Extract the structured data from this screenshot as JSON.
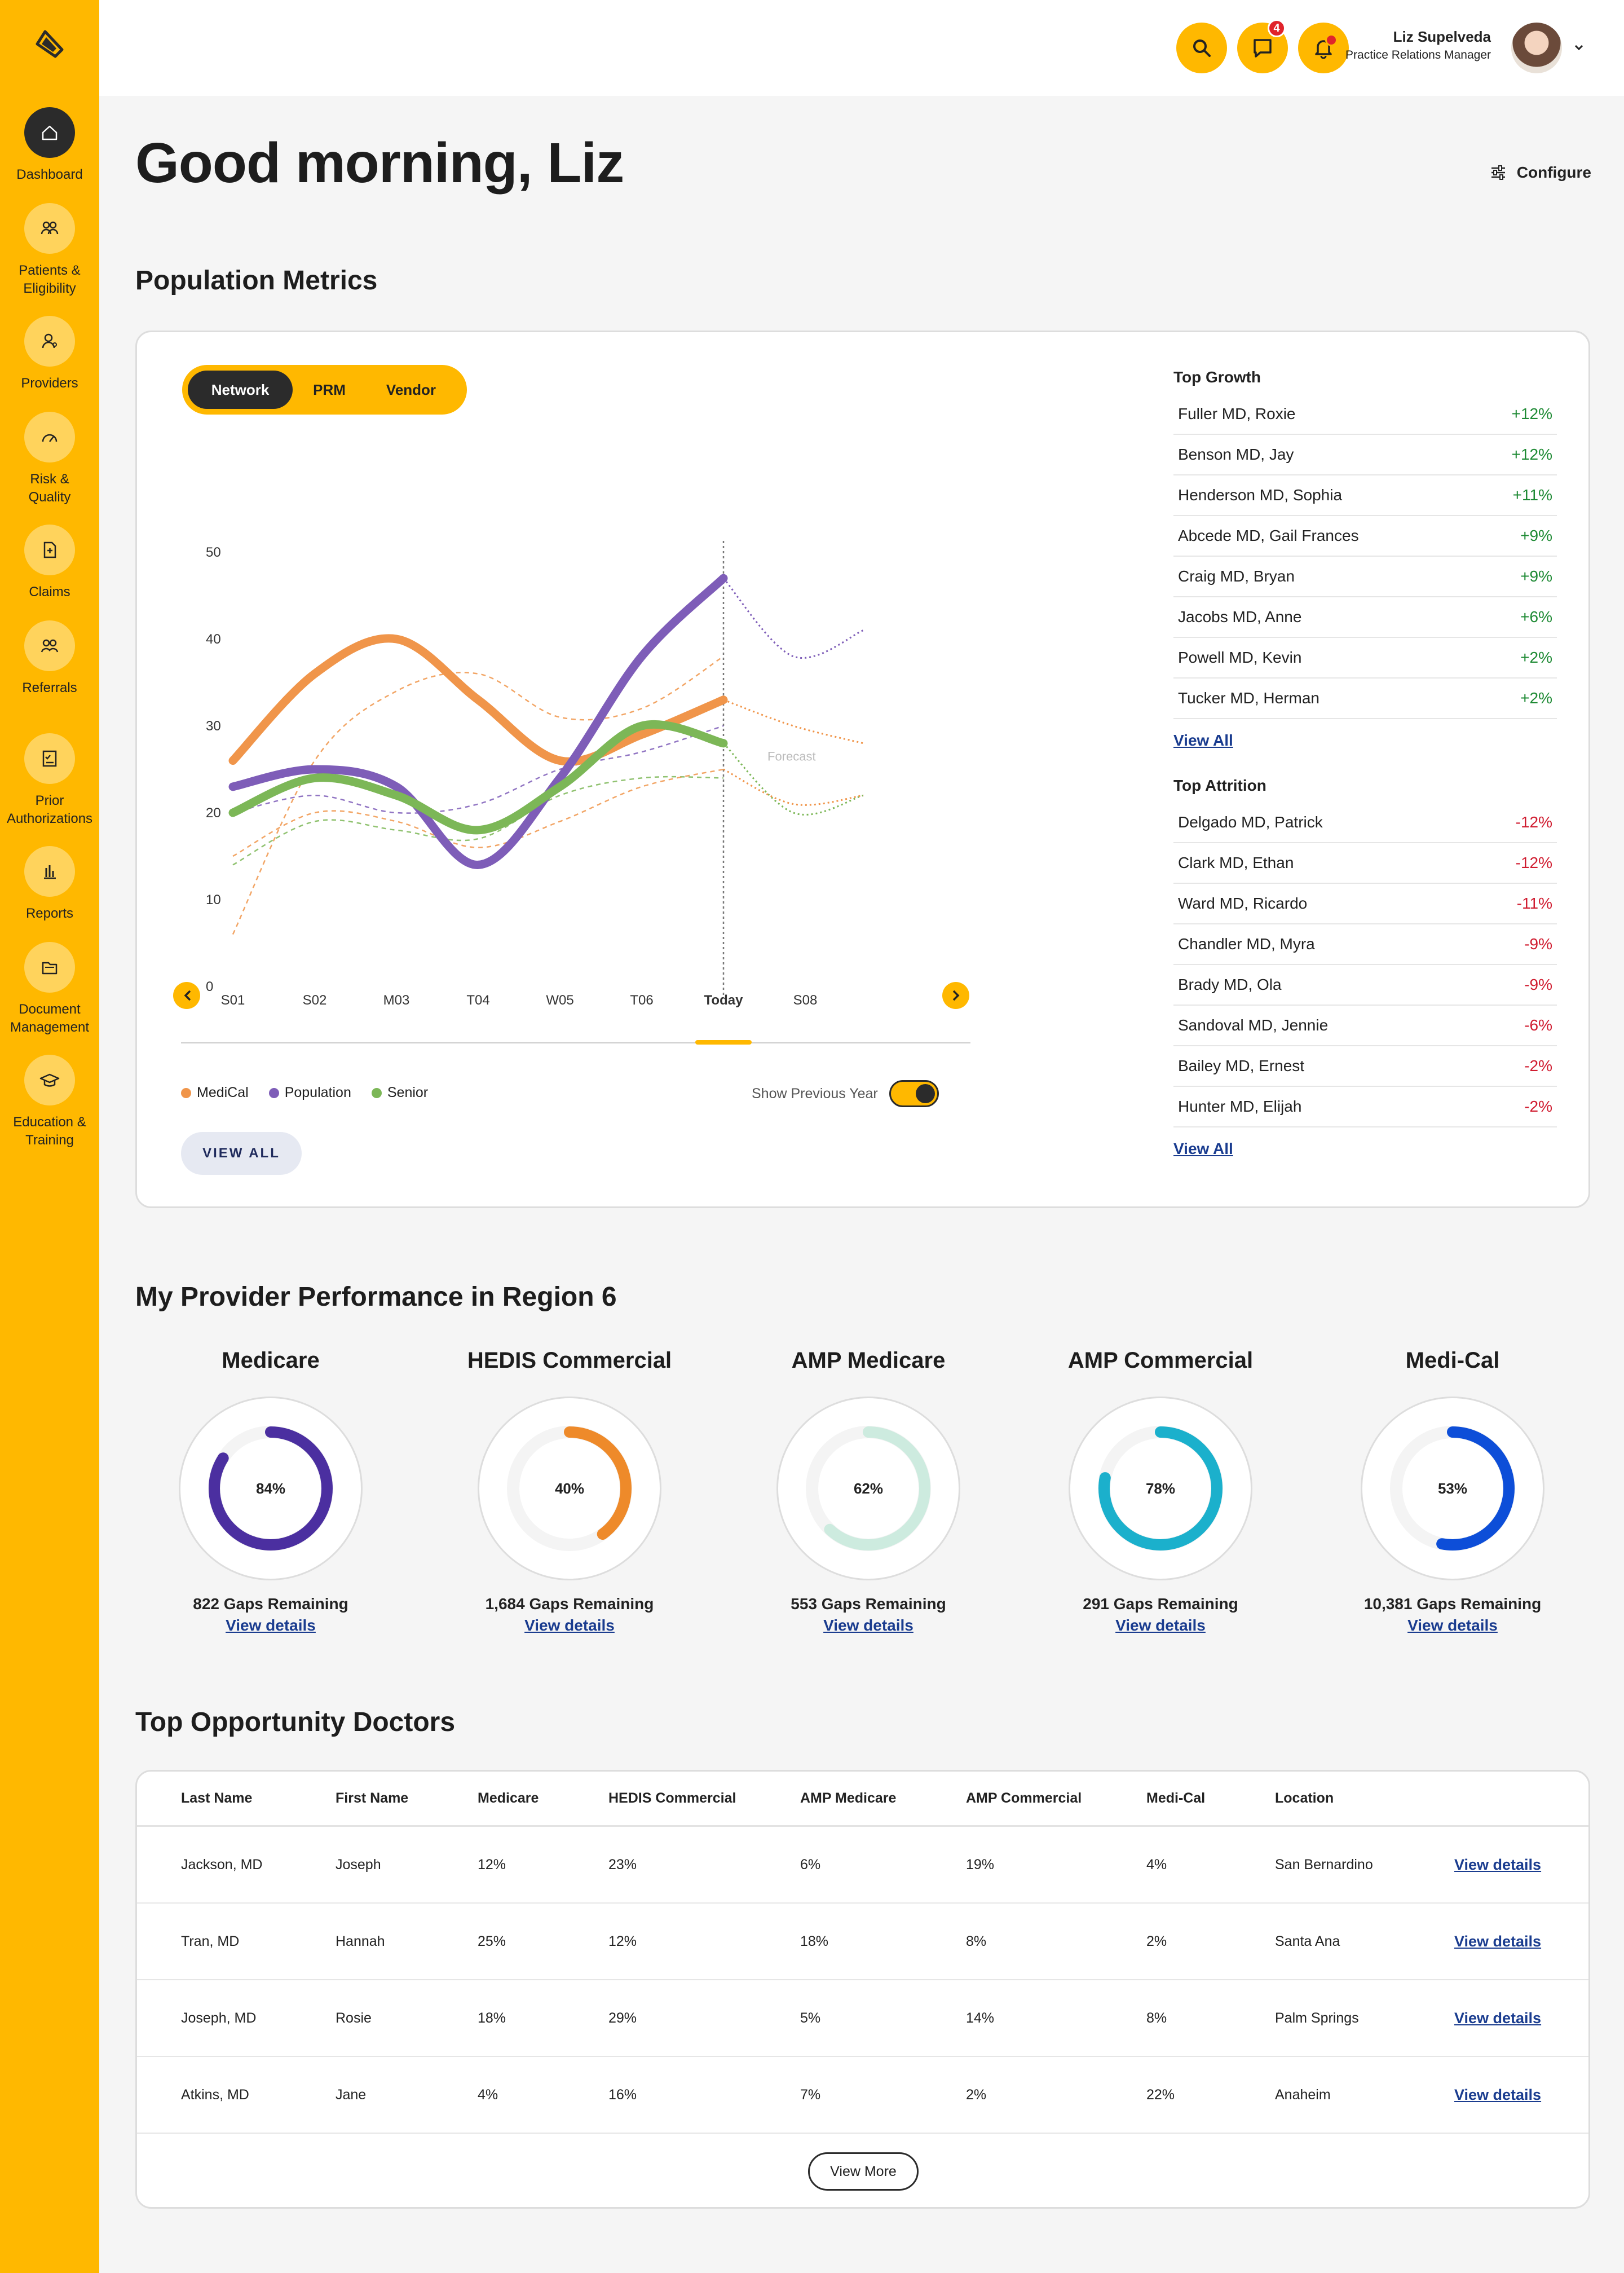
{
  "nav": [
    {
      "label": "Dashboard",
      "icon": "home-icon",
      "active": true
    },
    {
      "label": "Patients &\nEligibility",
      "icon": "people-icon"
    },
    {
      "label": "Providers",
      "icon": "provider-icon"
    },
    {
      "label": "Risk &\nQuality",
      "icon": "gauge-icon"
    },
    {
      "label": "Claims",
      "icon": "claims-doc-icon"
    },
    {
      "label": "Referrals",
      "icon": "referrals-icon"
    },
    {
      "label": "Prior\nAuthorizations",
      "icon": "checklist-icon"
    },
    {
      "label": "Reports",
      "icon": "bar-chart-icon"
    },
    {
      "label": "Document\nManagement",
      "icon": "folder-icon"
    },
    {
      "label": "Education &\nTraining",
      "icon": "graduation-cap-icon"
    }
  ],
  "topbar": {
    "message_badge": "4",
    "user_name": "Liz Supelveda",
    "user_role": "Practice Relations Manager"
  },
  "greeting": "Good morning, Liz",
  "configure_label": "Configure",
  "population": {
    "title": "Population Metrics",
    "segments": [
      "Network",
      "PRM",
      "Vendor"
    ],
    "active_segment": "Network",
    "legend": [
      "MediCal",
      "Population",
      "Senior"
    ],
    "show_previous_year": "Show Previous Year",
    "view_all_button": "VIEW ALL",
    "top_growth_title": "Top Growth",
    "top_growth": [
      {
        "name": "Fuller MD, Roxie",
        "value": "+12%"
      },
      {
        "name": "Benson MD, Jay",
        "value": "+12%"
      },
      {
        "name": "Henderson MD, Sophia",
        "value": "+11%"
      },
      {
        "name": "Abcede MD, Gail Frances",
        "value": "+9%"
      },
      {
        "name": "Craig MD, Bryan",
        "value": "+9%"
      },
      {
        "name": "Jacobs MD, Anne",
        "value": "+6%"
      },
      {
        "name": "Powell MD, Kevin",
        "value": "+2%"
      },
      {
        "name": "Tucker MD, Herman",
        "value": "+2%"
      }
    ],
    "top_attrition_title": "Top Attrition",
    "top_attrition": [
      {
        "name": "Delgado MD, Patrick",
        "value": "-12%"
      },
      {
        "name": "Clark MD, Ethan",
        "value": "-12%"
      },
      {
        "name": "Ward MD, Ricardo",
        "value": "-11%"
      },
      {
        "name": "Chandler MD, Myra",
        "value": "-9%"
      },
      {
        "name": "Brady MD, Ola",
        "value": "-9%"
      },
      {
        "name": "Sandoval MD, Jennie",
        "value": "-6%"
      },
      {
        "name": "Bailey MD, Ernest",
        "value": "-2%"
      },
      {
        "name": "Hunter MD, Elijah",
        "value": "-2%"
      }
    ],
    "view_all_link": "View All"
  },
  "chart_data": {
    "type": "line",
    "x": [
      "S01",
      "S02",
      "M03",
      "T04",
      "W05",
      "T06",
      "Today",
      "S08"
    ],
    "active_x": "Today",
    "ylim": [
      0,
      50
    ],
    "yticks": [
      0,
      10,
      20,
      30,
      40,
      50
    ],
    "forecast_label": "Forecast",
    "series": [
      {
        "name": "MediCal",
        "color": "#F0954A",
        "values": [
          26,
          36,
          40,
          33,
          26,
          29,
          33,
          33
        ]
      },
      {
        "name": "Population",
        "color": "#7E5DB8",
        "values": [
          23,
          25,
          23,
          14,
          24,
          38,
          47,
          47
        ]
      },
      {
        "name": "Senior",
        "color": "#7CB757",
        "values": [
          20,
          24,
          22,
          18,
          23,
          30,
          28,
          25
        ]
      }
    ]
  },
  "performance": {
    "title": "My Provider Performance in Region 6",
    "items": [
      {
        "title": "Medicare",
        "value": "84%",
        "pct": 84,
        "color": "#4B2FA0",
        "gaps": "822 Gaps Remaining"
      },
      {
        "title": "HEDIS Commercial",
        "value": "40%",
        "pct": 40,
        "color": "#EE8A2A",
        "gaps": "1,684 Gaps Remaining"
      },
      {
        "title": "AMP Medicare",
        "value": "62%",
        "pct": 62,
        "color": "#CDEBDF",
        "gaps": "553 Gaps Remaining"
      },
      {
        "title": "AMP Commercial",
        "value": "78%",
        "pct": 78,
        "color": "#1BB0CC",
        "gaps": "291 Gaps Remaining"
      },
      {
        "title": "Medi-Cal",
        "value": "53%",
        "pct": 53,
        "color": "#0D4ED8",
        "gaps": "10,381 Gaps Remaining"
      }
    ],
    "view_details": "View details"
  },
  "doctors": {
    "title": "Top Opportunity Doctors",
    "headers": [
      "Last Name",
      "First Name",
      "Medicare",
      "HEDIS Commercial",
      "AMP Medicare",
      "AMP Commercial",
      "Medi-Cal",
      "Location"
    ],
    "rows": [
      [
        "Jackson, MD",
        "Joseph",
        "12%",
        "23%",
        "6%",
        "19%",
        "4%",
        "San Bernardino"
      ],
      [
        "Tran, MD",
        "Hannah",
        "25%",
        "12%",
        "18%",
        "8%",
        "2%",
        "Santa Ana"
      ],
      [
        "Joseph, MD",
        "Rosie",
        "18%",
        "29%",
        "5%",
        "14%",
        "8%",
        "Palm Springs"
      ],
      [
        "Atkins, MD",
        "Jane",
        "4%",
        "16%",
        "7%",
        "2%",
        "22%",
        "Anaheim"
      ]
    ],
    "view_details": "View details",
    "view_more": "View More"
  }
}
